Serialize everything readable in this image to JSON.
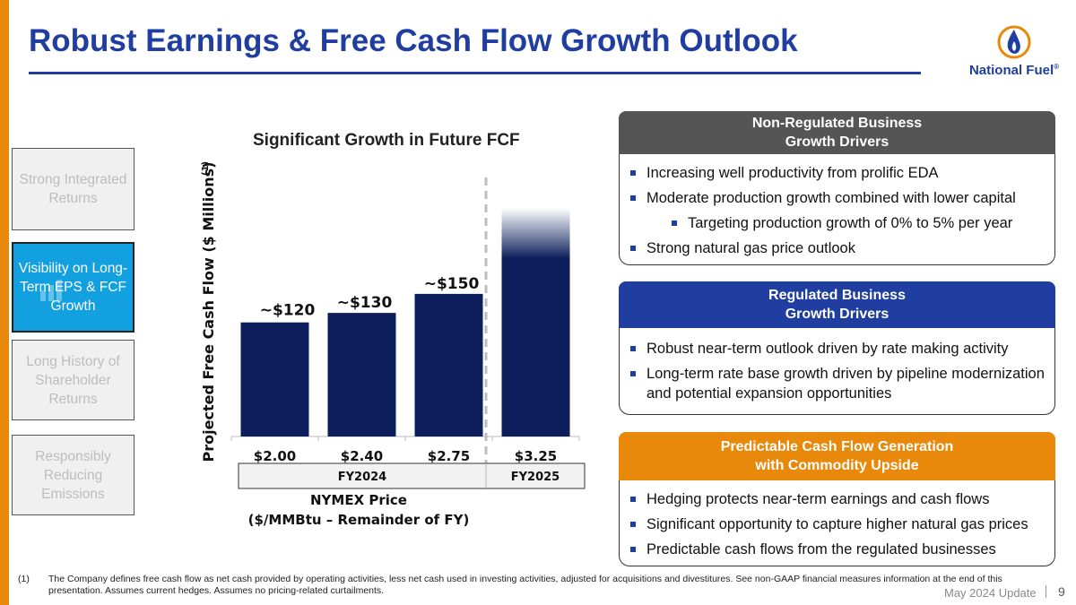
{
  "slide": {
    "title": "Robust Earnings & Free Cash Flow Growth Outlook",
    "logo_text": "National Fuel",
    "logo_mark": "®"
  },
  "nav": [
    {
      "label": "Strong Integrated Returns",
      "active": false
    },
    {
      "label": "Visibility on Long-Term EPS & FCF Growth",
      "active": true
    },
    {
      "label": "Long History of Shareholder Returns",
      "active": false
    },
    {
      "label": "Responsibly Reducing Emissions",
      "active": false
    }
  ],
  "chart_data": {
    "type": "bar",
    "title": "Significant Growth in Future FCF",
    "ylabel": "Projected Free Cash Flow ($ Millions)",
    "ylabel_superscript": "(1)",
    "xlabel_line1": "NYMEX Price",
    "xlabel_line2": "($/MMBtu – Remainder of FY)",
    "categories": [
      "$2.00",
      "$2.40",
      "$2.75",
      "$3.25"
    ],
    "values": [
      120,
      130,
      150,
      240
    ],
    "data_labels": [
      "~$120",
      "~$130",
      "~$150",
      ""
    ],
    "groups": [
      {
        "label": "FY2024",
        "span": [
          0,
          2
        ]
      },
      {
        "label": "FY2025",
        "span": [
          3,
          3
        ]
      }
    ],
    "last_bar_gradient": true,
    "ylim": [
      0,
      280
    ],
    "bar_color": "#0c1f5c"
  },
  "panels": {
    "non_regulated": {
      "title_line1": "Non-Regulated Business",
      "title_line2": "Growth Drivers",
      "color": "#555555",
      "bullets": [
        {
          "text": "Increasing well productivity from prolific EDA",
          "sub": false
        },
        {
          "text": "Moderate production growth combined with lower capital",
          "sub": false
        },
        {
          "text": "Targeting production growth of 0% to 5% per year",
          "sub": true
        },
        {
          "text": "Strong natural gas price outlook",
          "sub": false
        }
      ]
    },
    "regulated": {
      "title_line1": "Regulated Business",
      "title_line2": "Growth Drivers",
      "color": "#1f3ea0",
      "bullets": [
        {
          "text": "Robust near-term outlook driven by rate making activity",
          "sub": false
        },
        {
          "text": "Long-term rate base growth driven by pipeline modernization and potential expansion opportunities",
          "sub": false
        }
      ]
    },
    "predictable": {
      "title_line1": "Predictable Cash Flow Generation",
      "title_line2": "with Commodity Upside",
      "color": "#e8890c",
      "bullets": [
        {
          "text": "Hedging protects near-term earnings and cash flows",
          "sub": false
        },
        {
          "text": "Significant opportunity to capture higher natural gas prices",
          "sub": false
        },
        {
          "text": "Predictable cash flows from the regulated businesses",
          "sub": false
        }
      ]
    }
  },
  "footnote": {
    "number": "(1)",
    "text": "The Company defines free cash flow as net cash provided by operating activities, less net cash used in investing activities, adjusted for acquisitions and divestitures. See non-GAAP financial measures information at the end of this presentation. Assumes current hedges. Assumes no pricing-related curtailments."
  },
  "footer": {
    "update": "May 2024 Update",
    "page": "9"
  }
}
